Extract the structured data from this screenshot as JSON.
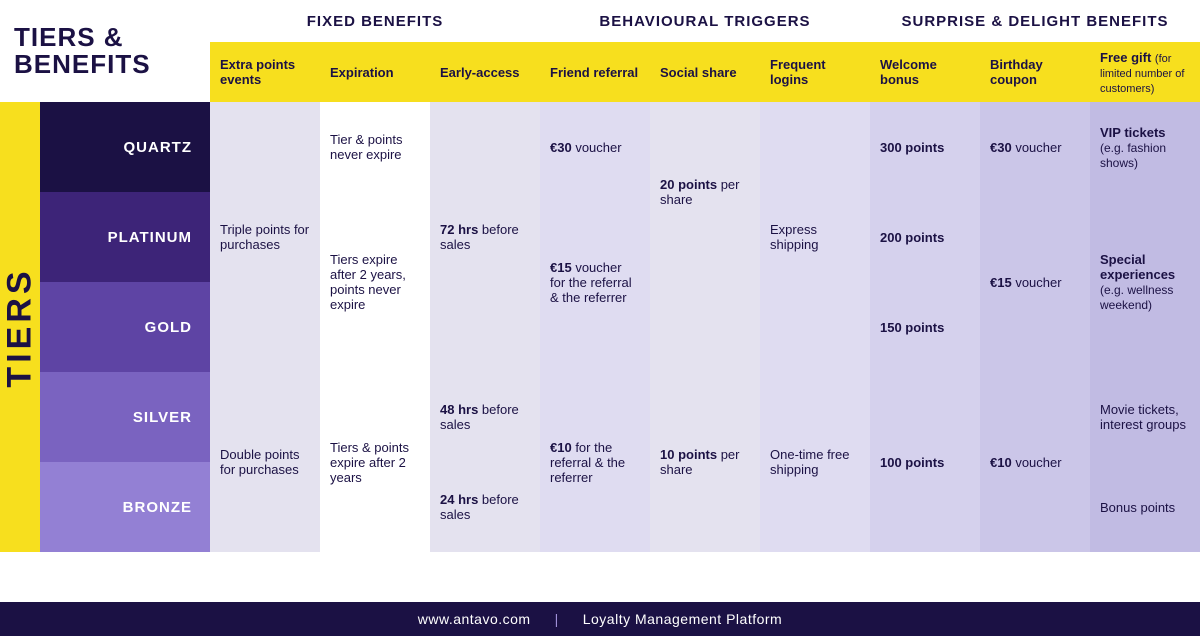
{
  "colors": {
    "yellow": "#f7df1e",
    "darknavy": "#1b1144",
    "white": "#ffffff",
    "shade_a": "#e4e2ef",
    "shade_b": "#dfdcf1",
    "shade_c": "#d5d1ed",
    "shade_d": "#cbc6e8",
    "shade_e": "#c1bbe3"
  },
  "title": "TIERS & BENEFITS",
  "tiers_label": "TIERS",
  "groups": {
    "fixed": "FIXED BENEFITS",
    "behavioural": "BEHAVIOURAL TRIGGERS",
    "surprise": "SURPRISE & DELIGHT BENEFITS"
  },
  "columns": {
    "extra_points": "Extra points events",
    "expiration": "Expiration",
    "early_access": "Early-access",
    "friend_referral": "Friend referral",
    "social_share": "Social share",
    "frequent_logins": "Frequent logins",
    "welcome_bonus": "Welcome bonus",
    "birthday_coupon": "Birthday coupon",
    "free_gift": "Free gift",
    "free_gift_sub": "(for limited number of customers)"
  },
  "tiers": [
    {
      "name": "QUARTZ",
      "bg": "#1b1144"
    },
    {
      "name": "PLATINUM",
      "bg": "#3d2478"
    },
    {
      "name": "GOLD",
      "bg": "#5e44a4"
    },
    {
      "name": "SILVER",
      "bg": "#7a63c0"
    },
    {
      "name": "BRONZE",
      "bg": "#9380d4"
    }
  ],
  "cells": {
    "extra_top": "Triple points for purchases",
    "extra_bottom": "Double points for purchases",
    "exp_quartz": "Tier & points never expire",
    "exp_mid": "Tiers expire after 2 years, points never expire",
    "exp_bottom": "Tiers & points expire after 2 years",
    "early_top_bold": "72 hrs",
    "early_top_rest": " before sales",
    "early_silver_bold": "48 hrs",
    "early_silver_rest": " before sales",
    "early_bronze_bold": "24 hrs",
    "early_bronze_rest": " before sales",
    "referral_quartz_bold": "€30",
    "referral_quartz_rest": " voucher",
    "referral_mid_bold": "€15",
    "referral_mid_rest": " voucher for the referral & the referrer",
    "referral_bottom_bold": "€10",
    "referral_bottom_rest": " for the referral & the referrer",
    "social_top_bold": "20 points",
    "social_top_rest": " per share",
    "social_bottom_bold": "10 points",
    "social_bottom_rest": " per share",
    "logins_top": "Express shipping",
    "logins_bottom": "One-time free shipping",
    "welcome_quartz": "300 points",
    "welcome_platinum": "200 points",
    "welcome_gold": "150 points",
    "welcome_sb": "100 points",
    "birthday_quartz_bold": "€30",
    "birthday_quartz_rest": " voucher",
    "birthday_mid_bold": "€15",
    "birthday_mid_rest": " voucher",
    "birthday_bottom_bold": "€10",
    "birthday_bottom_rest": " voucher",
    "gift_quartz_bold": "VIP tickets",
    "gift_quartz_rest": " (e.g. fashion shows)",
    "gift_mid_bold": "Special experiences",
    "gift_mid_rest": " (e.g. wellness weekend)",
    "gift_silver": "Movie tickets, interest groups",
    "gift_bronze": "Bonus points"
  },
  "footer": {
    "url": "www.antavo.com",
    "tagline": "Loyalty Management Platform"
  }
}
